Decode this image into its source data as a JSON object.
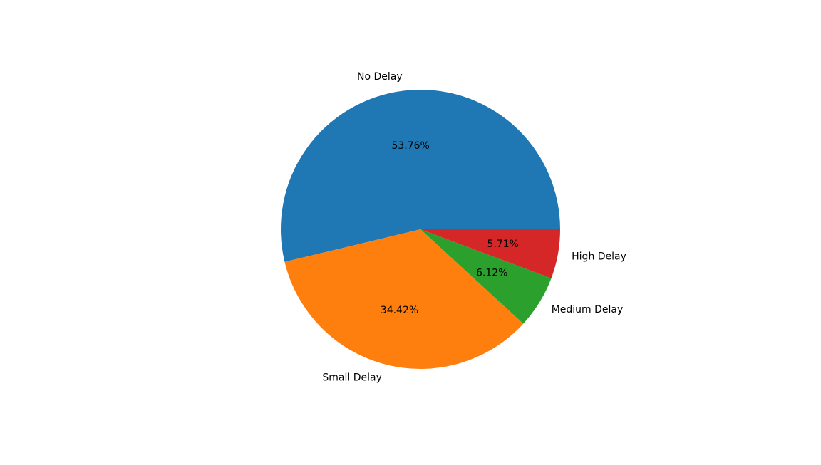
{
  "chart_data": {
    "type": "pie",
    "title": "",
    "labels": [
      "No Delay",
      "Small Delay",
      "Medium Delay",
      "High Delay"
    ],
    "values": [
      53.76,
      34.42,
      6.12,
      5.71
    ],
    "value_labels": [
      "53.76%",
      "34.42%",
      "6.12%",
      "5.71%"
    ],
    "colors": [
      "#1f77b4",
      "#ff7f0e",
      "#2ca02c",
      "#d62728"
    ],
    "start_angle_deg": 0,
    "direction": "counterclockwise",
    "legend": "none"
  }
}
